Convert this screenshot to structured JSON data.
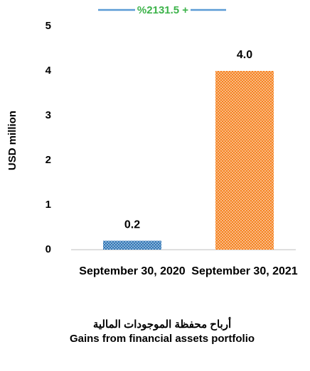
{
  "chart_data": {
    "type": "bar",
    "title": "أرباح محفظة الموجودات المالية",
    "subtitle": "Gains from financial assets portfolio",
    "annotation": "%2131.5 +",
    "ylabel": "USD million",
    "categories": [
      "September 30, 2020",
      "September 30, 2021"
    ],
    "values": [
      0.2,
      4.0
    ],
    "value_labels": [
      "0.2",
      "4.0"
    ],
    "colors": [
      "#2e75b6",
      "#f58220"
    ],
    "ylim": [
      0,
      5
    ],
    "yticks": [
      0,
      1,
      2,
      3,
      4,
      5
    ],
    "grid": false
  }
}
